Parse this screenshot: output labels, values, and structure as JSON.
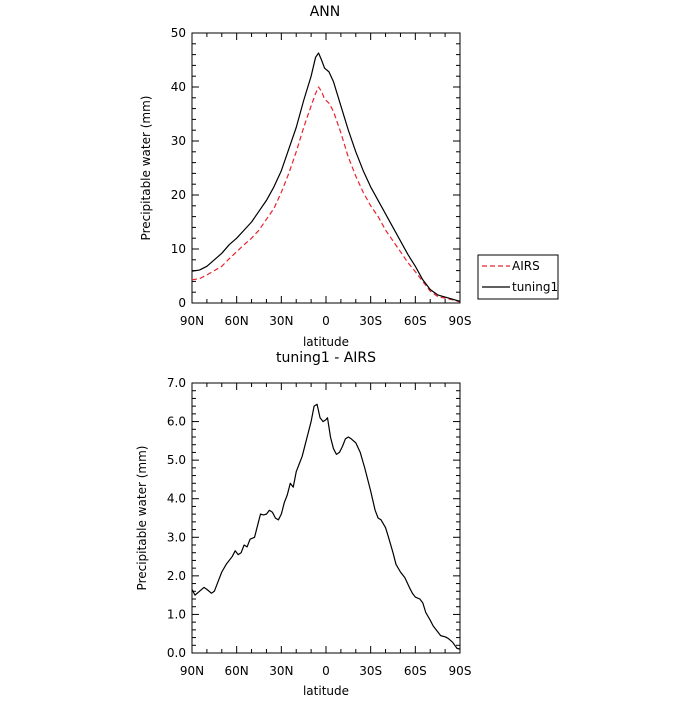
{
  "chart_data": [
    {
      "type": "line",
      "title": "ANN",
      "xlabel": "latitude",
      "ylabel": "Precipitable water (mm)",
      "x_ticks": [
        90,
        60,
        30,
        0,
        -30,
        -60,
        -90
      ],
      "x_tick_labels": [
        "90N",
        "60N",
        "30N",
        "0",
        "30S",
        "60S",
        "90S"
      ],
      "xlim": [
        90,
        -90
      ],
      "ylim": [
        0,
        50
      ],
      "y_ticks": [
        0,
        10,
        20,
        30,
        40,
        50
      ],
      "y_tick_labels": [
        "0",
        "10",
        "20",
        "30",
        "40",
        "50"
      ],
      "legend_position": "outside-right",
      "series": [
        {
          "name": "AIRS",
          "color": "#e8232d",
          "dash": "dashed",
          "points": [
            [
              90,
              4.3
            ],
            [
              85,
              4.5
            ],
            [
              80,
              5.2
            ],
            [
              75,
              6.0
            ],
            [
              70,
              6.8
            ],
            [
              65,
              8.2
            ],
            [
              60,
              9.5
            ],
            [
              55,
              10.8
            ],
            [
              50,
              12.0
            ],
            [
              45,
              13.5
            ],
            [
              40,
              15.5
            ],
            [
              35,
              17.5
            ],
            [
              30,
              20.5
            ],
            [
              25,
              24.0
            ],
            [
              20,
              28.0
            ],
            [
              15,
              32.5
            ],
            [
              10,
              36.5
            ],
            [
              7,
              38.8
            ],
            [
              5,
              40.0
            ],
            [
              3,
              39.2
            ],
            [
              1,
              37.8
            ],
            [
              -2,
              37.0
            ],
            [
              -5,
              35.5
            ],
            [
              -10,
              31.5
            ],
            [
              -15,
              27.0
            ],
            [
              -20,
              23.5
            ],
            [
              -25,
              20.5
            ],
            [
              -30,
              18.0
            ],
            [
              -35,
              16.0
            ],
            [
              -40,
              13.5
            ],
            [
              -45,
              11.5
            ],
            [
              -50,
              9.5
            ],
            [
              -55,
              7.5
            ],
            [
              -60,
              5.8
            ],
            [
              -65,
              4.0
            ],
            [
              -70,
              2.2
            ],
            [
              -75,
              1.2
            ],
            [
              -80,
              0.9
            ],
            [
              -85,
              0.6
            ],
            [
              -90,
              0.2
            ]
          ]
        },
        {
          "name": "tuning1",
          "color": "#000000",
          "dash": "solid",
          "points": [
            [
              90,
              5.9
            ],
            [
              85,
              6.1
            ],
            [
              80,
              6.8
            ],
            [
              75,
              8.0
            ],
            [
              70,
              9.2
            ],
            [
              65,
              10.8
            ],
            [
              60,
              12.0
            ],
            [
              55,
              13.5
            ],
            [
              50,
              15.0
            ],
            [
              45,
              17.0
            ],
            [
              40,
              19.0
            ],
            [
              35,
              21.5
            ],
            [
              30,
              24.5
            ],
            [
              25,
              28.5
            ],
            [
              20,
              32.5
            ],
            [
              15,
              37.5
            ],
            [
              10,
              42.0
            ],
            [
              7,
              45.5
            ],
            [
              5,
              46.3
            ],
            [
              3,
              45.0
            ],
            [
              1,
              43.5
            ],
            [
              -2,
              42.8
            ],
            [
              -5,
              41.0
            ],
            [
              -10,
              36.5
            ],
            [
              -15,
              32.0
            ],
            [
              -20,
              28.0
            ],
            [
              -25,
              24.5
            ],
            [
              -30,
              21.5
            ],
            [
              -35,
              19.0
            ],
            [
              -40,
              16.5
            ],
            [
              -45,
              14.0
            ],
            [
              -50,
              11.5
            ],
            [
              -55,
              9.0
            ],
            [
              -60,
              6.8
            ],
            [
              -65,
              4.3
            ],
            [
              -70,
              2.5
            ],
            [
              -75,
              1.5
            ],
            [
              -80,
              1.1
            ],
            [
              -85,
              0.7
            ],
            [
              -90,
              0.3
            ]
          ]
        }
      ]
    },
    {
      "type": "line",
      "title": "tuning1 - AIRS",
      "xlabel": "latitude",
      "ylabel": "Precipitable water (mm)",
      "x_ticks": [
        90,
        60,
        30,
        0,
        -30,
        -60,
        -90
      ],
      "x_tick_labels": [
        "90N",
        "60N",
        "30N",
        "0",
        "30S",
        "60S",
        "90S"
      ],
      "xlim": [
        90,
        -90
      ],
      "ylim": [
        0,
        7
      ],
      "y_ticks": [
        0,
        1,
        2,
        3,
        4,
        5,
        6,
        7
      ],
      "y_tick_labels": [
        "0.0",
        "1.0",
        "2.0",
        "3.0",
        "4.0",
        "5.0",
        "6.0",
        "7.0"
      ],
      "series": [
        {
          "color": "#000000",
          "dash": "solid",
          "points": [
            [
              90,
              1.65
            ],
            [
              88,
              1.5
            ],
            [
              85,
              1.6
            ],
            [
              82,
              1.7
            ],
            [
              80,
              1.65
            ],
            [
              77,
              1.55
            ],
            [
              75,
              1.6
            ],
            [
              72,
              1.9
            ],
            [
              70,
              2.1
            ],
            [
              67,
              2.3
            ],
            [
              63,
              2.5
            ],
            [
              61,
              2.65
            ],
            [
              59,
              2.55
            ],
            [
              57,
              2.6
            ],
            [
              55,
              2.8
            ],
            [
              53,
              2.75
            ],
            [
              51,
              2.95
            ],
            [
              48,
              3.0
            ],
            [
              46,
              3.3
            ],
            [
              44,
              3.6
            ],
            [
              42,
              3.58
            ],
            [
              40,
              3.6
            ],
            [
              38,
              3.7
            ],
            [
              36,
              3.65
            ],
            [
              34,
              3.5
            ],
            [
              32,
              3.45
            ],
            [
              30,
              3.6
            ],
            [
              28,
              3.9
            ],
            [
              26,
              4.1
            ],
            [
              24,
              4.4
            ],
            [
              22,
              4.3
            ],
            [
              20,
              4.7
            ],
            [
              18,
              4.9
            ],
            [
              16,
              5.1
            ],
            [
              14,
              5.4
            ],
            [
              12,
              5.7
            ],
            [
              10,
              6.0
            ],
            [
              8,
              6.4
            ],
            [
              6,
              6.45
            ],
            [
              4,
              6.1
            ],
            [
              2,
              6.0
            ],
            [
              0,
              6.05
            ],
            [
              -1,
              6.1
            ],
            [
              -3,
              5.6
            ],
            [
              -5,
              5.3
            ],
            [
              -7,
              5.15
            ],
            [
              -9,
              5.2
            ],
            [
              -11,
              5.35
            ],
            [
              -13,
              5.55
            ],
            [
              -15,
              5.6
            ],
            [
              -17,
              5.55
            ],
            [
              -20,
              5.45
            ],
            [
              -23,
              5.2
            ],
            [
              -26,
              4.8
            ],
            [
              -30,
              4.2
            ],
            [
              -33,
              3.7
            ],
            [
              -35,
              3.5
            ],
            [
              -37,
              3.45
            ],
            [
              -40,
              3.25
            ],
            [
              -42,
              3.0
            ],
            [
              -45,
              2.6
            ],
            [
              -47,
              2.3
            ],
            [
              -50,
              2.1
            ],
            [
              -53,
              1.95
            ],
            [
              -56,
              1.7
            ],
            [
              -58,
              1.55
            ],
            [
              -60,
              1.45
            ],
            [
              -63,
              1.4
            ],
            [
              -65,
              1.3
            ],
            [
              -67,
              1.05
            ],
            [
              -70,
              0.85
            ],
            [
              -72,
              0.7
            ],
            [
              -75,
              0.55
            ],
            [
              -77,
              0.45
            ],
            [
              -80,
              0.42
            ],
            [
              -82,
              0.38
            ],
            [
              -85,
              0.28
            ],
            [
              -88,
              0.12
            ],
            [
              -90,
              0.1
            ]
          ]
        }
      ]
    }
  ]
}
